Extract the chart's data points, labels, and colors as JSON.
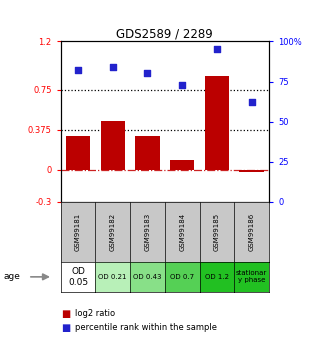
{
  "title": "GDS2589 / 2289",
  "samples": [
    "GSM99181",
    "GSM99182",
    "GSM99183",
    "GSM99184",
    "GSM99185",
    "GSM99186"
  ],
  "log2_ratio": [
    0.32,
    0.46,
    0.32,
    0.09,
    0.88,
    -0.02
  ],
  "percentile_rank": [
    82,
    84,
    80,
    73,
    95,
    62
  ],
  "age_labels": [
    "OD\n0.05",
    "OD 0.21",
    "OD 0.43",
    "OD 0.7",
    "OD 1.2",
    "stationar\ny phase"
  ],
  "age_colors": [
    "#ffffff",
    "#b8f0b8",
    "#88e088",
    "#55d055",
    "#22c022",
    "#22c022"
  ],
  "ylim_left": [
    -0.3,
    1.2
  ],
  "ylim_right": [
    0,
    100
  ],
  "yticks_left": [
    -0.3,
    0,
    0.375,
    0.75,
    1.2
  ],
  "yticks_right": [
    0,
    25,
    50,
    75,
    100
  ],
  "ytick_labels_left": [
    "-0.3",
    "0",
    "0.375",
    "0.75",
    "1.2"
  ],
  "ytick_labels_right": [
    "0",
    "25",
    "50",
    "75",
    "100%"
  ],
  "hlines": [
    0.375,
    0.75
  ],
  "bar_color": "#bb0000",
  "dot_color": "#2222cc",
  "zero_line_color": "#cc2222",
  "hline_color": "#000000",
  "sample_bg_color": "#c8c8c8",
  "legend_bar_label": "log2 ratio",
  "legend_dot_label": "percentile rank within the sample"
}
